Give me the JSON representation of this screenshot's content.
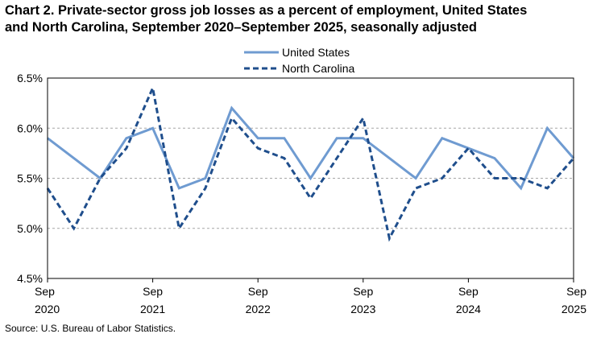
{
  "title": {
    "line1": "Chart 2. Private-sector gross job losses as a percent of employment, United States",
    "line2": "and North Carolina, September 2020–September 2025, seasonally adjusted"
  },
  "source": "Source: U.S. Bureau of Labor Statistics.",
  "chart_data": {
    "type": "line",
    "title": "Chart 2. Private-sector gross job losses as a percent of employment, United States and North Carolina, September 2020–September 2025, seasonally adjusted",
    "xlabel": "",
    "ylabel": "",
    "x": [
      "Sep 2020",
      "Dec 2020",
      "Mar 2021",
      "Jun 2021",
      "Sep 2021",
      "Dec 2021",
      "Mar 2022",
      "Jun 2022",
      "Sep 2022",
      "Dec 2022",
      "Mar 2023",
      "Jun 2023",
      "Sep 2023",
      "Dec 2023",
      "Mar 2024",
      "Jun 2024",
      "Sep 2024",
      "Dec 2024",
      "Mar 2025",
      "Jun 2025",
      "Sep 2025"
    ],
    "x_ticks": [
      {
        "index": 0,
        "line1": "Sep",
        "line2": "2020"
      },
      {
        "index": 4,
        "line1": "Sep",
        "line2": "2021"
      },
      {
        "index": 8,
        "line1": "Sep",
        "line2": "2022"
      },
      {
        "index": 12,
        "line1": "Sep",
        "line2": "2023"
      },
      {
        "index": 16,
        "line1": "Sep",
        "line2": "2024"
      },
      {
        "index": 20,
        "line1": "Sep",
        "line2": "2025"
      }
    ],
    "ylim": [
      4.5,
      6.5
    ],
    "y_ticks": [
      4.5,
      5.0,
      5.5,
      6.0,
      6.5
    ],
    "y_tick_labels": [
      "4.5%",
      "5.0%",
      "5.5%",
      "6.0%",
      "6.5%"
    ],
    "grid": "horizontal dashed",
    "legend_position": "top-center",
    "series": [
      {
        "name": "United States",
        "color": "#6f9bd1",
        "style": "solid",
        "values": [
          5.9,
          5.7,
          5.5,
          5.9,
          6.0,
          5.4,
          5.5,
          6.2,
          5.9,
          5.9,
          5.5,
          5.9,
          5.9,
          5.7,
          5.5,
          5.9,
          5.8,
          5.7,
          5.4,
          6.0,
          5.7
        ]
      },
      {
        "name": "North Carolina",
        "color": "#1f4e8c",
        "style": "dashed",
        "values": [
          5.4,
          5.0,
          5.5,
          5.8,
          6.4,
          5.0,
          5.4,
          6.1,
          5.8,
          5.7,
          5.3,
          5.7,
          6.1,
          4.9,
          5.4,
          5.5,
          5.8,
          5.5,
          5.5,
          5.4,
          5.7
        ]
      }
    ]
  }
}
